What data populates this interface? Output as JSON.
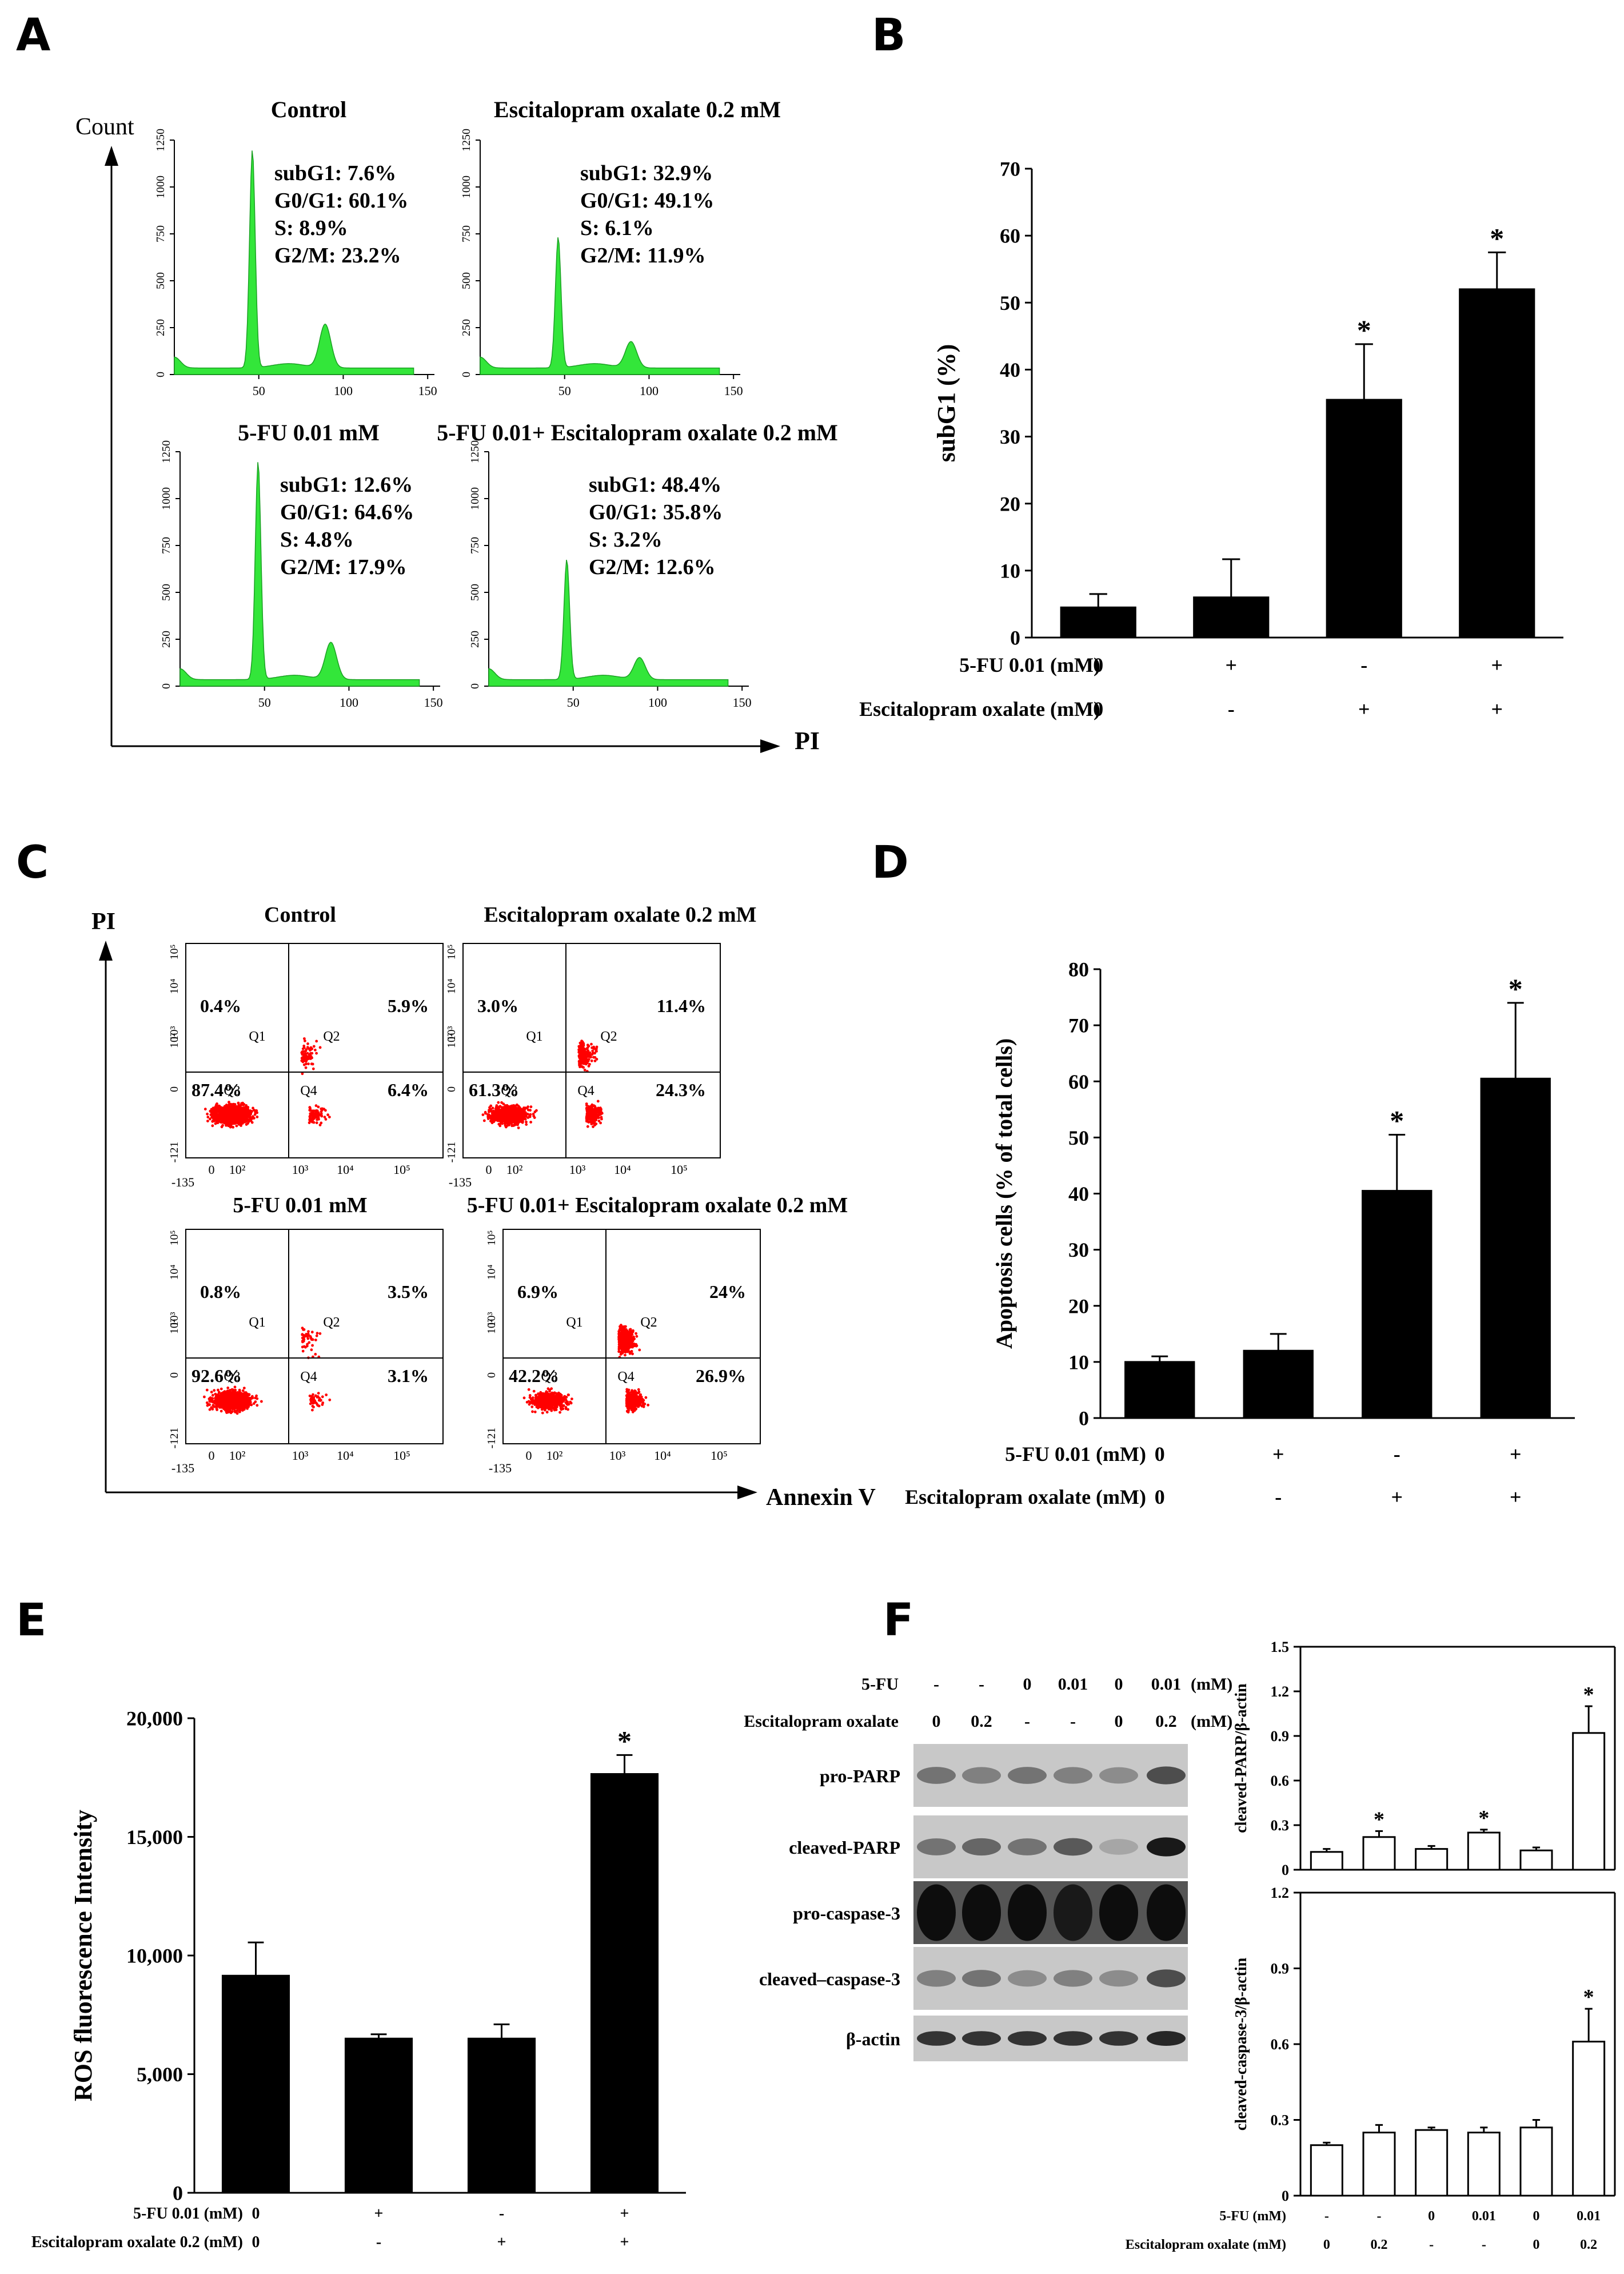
{
  "panels": {
    "A": {
      "label": "A",
      "y_axis": "Count",
      "x_axis": "PI",
      "hist_yticks": [
        "0",
        "250",
        "500",
        "750",
        "1000",
        "1250"
      ],
      "hist_xticks": [
        "50",
        "100",
        "150"
      ],
      "histograms": [
        {
          "title": "Control",
          "stats": [
            "subG1: 7.6%",
            "G0/G1: 60.1%",
            "S: 8.9%",
            "G2/M: 23.2%"
          ],
          "peak1": 1.0,
          "peak2": 0.2
        },
        {
          "title": "Escitalopram  oxalate  0.2 mM",
          "stats": [
            "subG1: 32.9%",
            "G0/G1: 49.1%",
            "S: 6.1%",
            "G2/M: 11.9%"
          ],
          "peak1": 0.6,
          "peak2": 0.12
        },
        {
          "title": "5-FU 0.01 mM",
          "stats": [
            "subG1: 12.6%",
            "G0/G1: 64.6%",
            "S: 4.8%",
            "G2/M: 17.9%"
          ],
          "peak1": 1.0,
          "peak2": 0.17
        },
        {
          "title": "5-FU 0.01+ Escitalopram  oxalate 0.2 mM",
          "stats": [
            "subG1: 48.4%",
            "G0/G1: 35.8%",
            "S: 3.2%",
            "G2/M: 12.6%"
          ],
          "peak1": 0.55,
          "peak2": 0.1
        }
      ],
      "hist_color": "#33e63a"
    },
    "B": {
      "label": "B"
    },
    "C": {
      "label": "C",
      "y_axis": "PI",
      "x_axis": "Annexin V",
      "quad_names": [
        "Q1",
        "Q2",
        "Q3",
        "Q4"
      ],
      "ytick_labels": [
        "-121",
        "0",
        "10²",
        "10³",
        "10⁴",
        "10⁵"
      ],
      "xtick_labels": [
        "-135",
        "0",
        "10²",
        "10³",
        "10⁴",
        "10⁵"
      ],
      "plots": [
        {
          "title": "Control",
          "q1": "0.4%",
          "q2": "5.9%",
          "q3": "87.4%",
          "q4": "6.4%"
        },
        {
          "title": "Escitalopram oxalate 0.2 mM",
          "q1": "3.0%",
          "q2": "11.4%",
          "q3": "61.3%",
          "q4": "24.3%"
        },
        {
          "title": "5-FU 0.01 mM",
          "q1": "0.8%",
          "q2": "3.5%",
          "q3": "92.6%",
          "q4": "3.1%"
        },
        {
          "title": "5-FU 0.01+ Escitalopram oxalate 0.2 mM",
          "q1": "6.9%",
          "q2": "24%",
          "q3": "42.2%",
          "q4": "26.9%"
        }
      ],
      "dot_color": "#ff0000"
    },
    "D": {
      "label": "D"
    },
    "E": {
      "label": "E"
    },
    "F": {
      "label": "F",
      "blot_header": {
        "rows": [
          {
            "name": "5-FU",
            "values": [
              "-",
              "-",
              "0",
              "0.01",
              "0",
              "0.01"
            ],
            "unit": "(mM)"
          },
          {
            "name": "Escitalopram oxalate",
            "values": [
              "0",
              "0.2",
              "-",
              "-",
              "0",
              "0.2"
            ],
            "unit": "(mM)"
          }
        ]
      },
      "blot_rows": [
        {
          "name": "pro-PARP",
          "intensity": [
            0.55,
            0.5,
            0.55,
            0.5,
            0.45,
            0.7
          ]
        },
        {
          "name": "cleaved-PARP",
          "intensity": [
            0.55,
            0.6,
            0.55,
            0.65,
            0.35,
            0.9
          ]
        },
        {
          "name": "pro-caspase-3",
          "intensity": [
            0.95,
            0.95,
            0.95,
            0.9,
            0.95,
            0.95
          ]
        },
        {
          "name": "cleaved–caspase-3",
          "intensity": [
            0.5,
            0.55,
            0.45,
            0.5,
            0.45,
            0.7
          ]
        },
        {
          "name": "β-actin",
          "intensity": [
            0.8,
            0.8,
            0.8,
            0.8,
            0.8,
            0.85
          ]
        }
      ],
      "bar_conditions": {
        "rows": [
          {
            "name": "5-FU (mM)",
            "values": [
              "-",
              "-",
              "0",
              "0.01",
              "0",
              "0.01"
            ]
          },
          {
            "name": "Escitalopram oxalate  (mM)",
            "values": [
              "0",
              "0.2",
              "-",
              "-",
              "0",
              "0.2"
            ]
          }
        ]
      }
    }
  },
  "chart_data": [
    {
      "id": "B",
      "type": "bar",
      "categories": [
        "1",
        "2",
        "3",
        "4"
      ],
      "values": [
        4.5,
        6,
        35.5,
        52
      ],
      "errors": [
        2,
        5.7,
        8.3,
        5.5
      ],
      "significant": [
        false,
        false,
        true,
        true
      ],
      "ylabel": "subG1 (%)",
      "ylim": [
        0,
        70
      ],
      "yticks": [
        0,
        10,
        20,
        30,
        40,
        50,
        60,
        70
      ],
      "conditions": [
        {
          "name": "5-FU 0.01 (mM)",
          "values": [
            "0",
            "+",
            "-",
            "+"
          ]
        },
        {
          "name": "Escitalopram oxalate (mM)",
          "values": [
            "0",
            "-",
            "+",
            "+"
          ]
        }
      ],
      "bar_color": "#000000"
    },
    {
      "id": "D",
      "type": "bar",
      "categories": [
        "1",
        "2",
        "3",
        "4"
      ],
      "values": [
        10,
        12,
        40.5,
        60.5
      ],
      "errors": [
        1,
        3,
        10,
        13.5
      ],
      "significant": [
        false,
        false,
        true,
        true
      ],
      "ylabel": "Apoptosis cells (% of total cells)",
      "ylim": [
        0,
        80
      ],
      "yticks": [
        0,
        10,
        20,
        30,
        40,
        50,
        60,
        70,
        80
      ],
      "conditions": [
        {
          "name": "5-FU 0.01 (mM)",
          "values": [
            "0",
            "+",
            "-",
            "+"
          ]
        },
        {
          "name": "Escitalopram oxalate (mM)",
          "values": [
            "0",
            "-",
            "+",
            "+"
          ]
        }
      ],
      "bar_color": "#000000"
    },
    {
      "id": "E",
      "type": "bar",
      "categories": [
        "1",
        "2",
        "3",
        "4"
      ],
      "values": [
        9150,
        6500,
        6500,
        17650
      ],
      "errors": [
        1400,
        180,
        600,
        800
      ],
      "significant": [
        false,
        false,
        false,
        true
      ],
      "ylabel": "ROS fluorescence Intensity",
      "ylim": [
        0,
        20000
      ],
      "yticks": [
        0,
        5000,
        10000,
        15000,
        20000
      ],
      "ytick_labels": [
        "0",
        "5,000",
        "10,000",
        "15,000",
        "20,000"
      ],
      "conditions": [
        {
          "name": "5-FU 0.01 (mM)",
          "values": [
            "0",
            "+",
            "-",
            "+"
          ]
        },
        {
          "name": "Escitalopram oxalate 0.2 (mM)",
          "values": [
            "0",
            "-",
            "+",
            "+"
          ]
        }
      ],
      "bar_color": "#000000"
    },
    {
      "id": "F1",
      "type": "bar",
      "categories": [
        "1",
        "2",
        "3",
        "4",
        "5",
        "6"
      ],
      "values": [
        0.12,
        0.22,
        0.14,
        0.25,
        0.13,
        0.92
      ],
      "errors": [
        0.02,
        0.04,
        0.02,
        0.02,
        0.02,
        0.18
      ],
      "significant": [
        false,
        true,
        false,
        true,
        false,
        true
      ],
      "ylabel": "cleaved-PARP/β-actin",
      "ylim": [
        0,
        1.5
      ],
      "yticks": [
        0,
        0.3,
        0.6,
        0.9,
        1.2,
        1.5
      ],
      "bar_color": "#ffffff"
    },
    {
      "id": "F2",
      "type": "bar",
      "categories": [
        "1",
        "2",
        "3",
        "4",
        "5",
        "6"
      ],
      "values": [
        0.2,
        0.25,
        0.26,
        0.25,
        0.27,
        0.61
      ],
      "errors": [
        0.01,
        0.03,
        0.01,
        0.02,
        0.03,
        0.13
      ],
      "significant": [
        false,
        false,
        false,
        false,
        false,
        true
      ],
      "ylabel": "cleaved-caspase-3/β-actin",
      "ylim": [
        0,
        1.2
      ],
      "yticks": [
        0,
        0.3,
        0.6,
        0.9,
        1.2
      ],
      "bar_color": "#ffffff"
    }
  ]
}
